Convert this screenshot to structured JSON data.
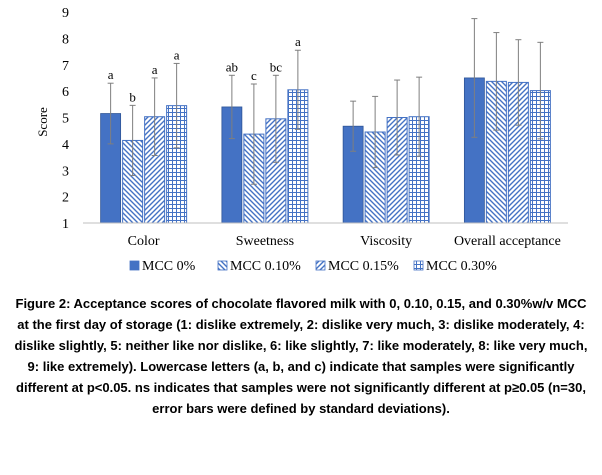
{
  "chart_data": {
    "type": "bar",
    "ylabel": "Score",
    "ylim": [
      1,
      9
    ],
    "yticks": [
      1,
      2,
      3,
      4,
      5,
      6,
      7,
      8,
      9
    ],
    "grid": false,
    "legend_position": "bottom",
    "categories": [
      "Color",
      "Sweetness",
      "Viscosity",
      "Overall acceptance"
    ],
    "series": [
      {
        "name": "MCC 0%",
        "values": [
          5.15,
          5.4,
          4.67,
          6.5
        ],
        "errors": [
          1.15,
          1.2,
          0.95,
          2.25
        ],
        "letters": [
          "a",
          "ab",
          "",
          ""
        ],
        "color": "#4472c4",
        "pattern": "solid"
      },
      {
        "name": "MCC 0.10%",
        "values": [
          4.13,
          4.37,
          4.45,
          6.37
        ],
        "errors": [
          1.33,
          1.9,
          1.35,
          1.85
        ],
        "letters": [
          "b",
          "c",
          "",
          ""
        ],
        "color": "#4472c4",
        "pattern": "back-diagonal"
      },
      {
        "name": "MCC 0.15%",
        "values": [
          5.03,
          4.95,
          5.0,
          6.33
        ],
        "errors": [
          1.47,
          1.65,
          1.42,
          1.62
        ],
        "letters": [
          "a",
          "bc",
          "",
          ""
        ],
        "color": "#4472c4",
        "pattern": "forward-diagonal"
      },
      {
        "name": "MCC 0.30%",
        "values": [
          5.45,
          6.05,
          5.03,
          6.02
        ],
        "errors": [
          1.6,
          1.5,
          1.5,
          1.83
        ],
        "letters": [
          "a",
          "a",
          "",
          ""
        ],
        "color": "#4472c4",
        "pattern": "grid"
      }
    ]
  },
  "caption": "Figure 2: Acceptance scores of chocolate flavored milk with 0, 0.10, 0.15, and 0.30%w/v MCC at the first day of storage (1: dislike extremely, 2: dislike very much, 3: dislike moderately, 4: dislike slightly, 5: neither like nor dislike, 6: like slightly, 7: like moderately, 8: like very much, 9: like extremely). Lowercase letters (a, b, and c) indicate that samples were significantly different at p<0.05. ns indicates that samples were not significantly different at p≥0.05 (n=30, error bars were defined by standard deviations)."
}
